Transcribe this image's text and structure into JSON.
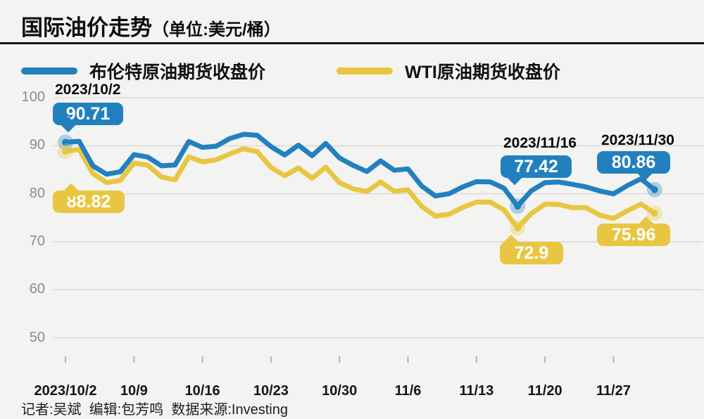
{
  "title": {
    "main": "国际油价走势",
    "unit": "（单位:美元/桶）"
  },
  "footer": {
    "credits": "记者:吴斌  编辑:包芳鸣  数据来源:Investing"
  },
  "colors": {
    "brent": "#2380BF",
    "wti": "#E9C642",
    "background": "#F3F3F1",
    "grid": "#DCDCDB",
    "y_axis_text": "#8C8C8C",
    "divider": "#141414"
  },
  "chart_data": {
    "type": "line",
    "title": "国际油价走势",
    "ylabel": "美元/桶",
    "ylim": [
      50,
      100
    ],
    "grid": "horizontal",
    "legend_position": "top",
    "y_ticks": [
      100,
      90,
      80,
      70,
      60,
      50
    ],
    "x_ticks": [
      "2023/10/2",
      "10/9",
      "10/16",
      "10/23",
      "10/30",
      "11/6",
      "11/13",
      "11/20",
      "11/27"
    ],
    "x": [
      "10/2",
      "10/3",
      "10/4",
      "10/5",
      "10/6",
      "10/9",
      "10/10",
      "10/11",
      "10/12",
      "10/13",
      "10/16",
      "10/17",
      "10/18",
      "10/19",
      "10/20",
      "10/23",
      "10/24",
      "10/25",
      "10/26",
      "10/27",
      "10/30",
      "10/31",
      "11/1",
      "11/2",
      "11/3",
      "11/6",
      "11/7",
      "11/8",
      "11/9",
      "11/10",
      "11/13",
      "11/14",
      "11/15",
      "11/16",
      "11/17",
      "11/20",
      "11/21",
      "11/22",
      "11/23",
      "11/24",
      "11/27",
      "11/28",
      "11/29",
      "11/30"
    ],
    "series": [
      {
        "id": "brent",
        "name": "布伦特原油期货收盘价",
        "color": "#2380BF",
        "values": [
          90.71,
          90.92,
          85.81,
          84.07,
          84.58,
          88.15,
          87.65,
          85.82,
          86.0,
          90.89,
          89.65,
          89.9,
          91.5,
          92.38,
          92.16,
          89.83,
          88.07,
          90.13,
          87.93,
          90.48,
          87.45,
          85.91,
          84.63,
          86.85,
          84.89,
          85.18,
          81.61,
          79.54,
          80.01,
          81.43,
          82.52,
          82.47,
          81.18,
          77.42,
          80.61,
          82.32,
          82.45,
          81.96,
          81.42,
          80.58,
          79.98,
          81.68,
          83.1,
          80.86
        ]
      },
      {
        "id": "wti",
        "name": "WTI原油期货收盘价",
        "color": "#E9C642",
        "values": [
          88.82,
          89.23,
          84.22,
          82.31,
          82.79,
          86.38,
          85.97,
          83.49,
          82.91,
          87.69,
          86.66,
          87.08,
          88.32,
          89.37,
          88.75,
          85.49,
          83.74,
          85.39,
          83.21,
          85.54,
          82.31,
          81.02,
          80.44,
          82.46,
          80.51,
          80.82,
          77.37,
          75.33,
          75.74,
          77.17,
          78.26,
          78.26,
          76.66,
          72.9,
          75.89,
          77.83,
          77.77,
          77.1,
          77.1,
          75.54,
          74.86,
          76.41,
          77.86,
          75.96
        ]
      }
    ],
    "annotations": [
      {
        "date": "2023/10/2",
        "index": 0,
        "brent": "90.71",
        "wti": "88.82"
      },
      {
        "date": "2023/11/16",
        "index": 33,
        "brent": "77.42",
        "wti": "72.9"
      },
      {
        "date": "2023/11/30",
        "index": 43,
        "brent": "80.86",
        "wti": "75.96"
      }
    ]
  }
}
